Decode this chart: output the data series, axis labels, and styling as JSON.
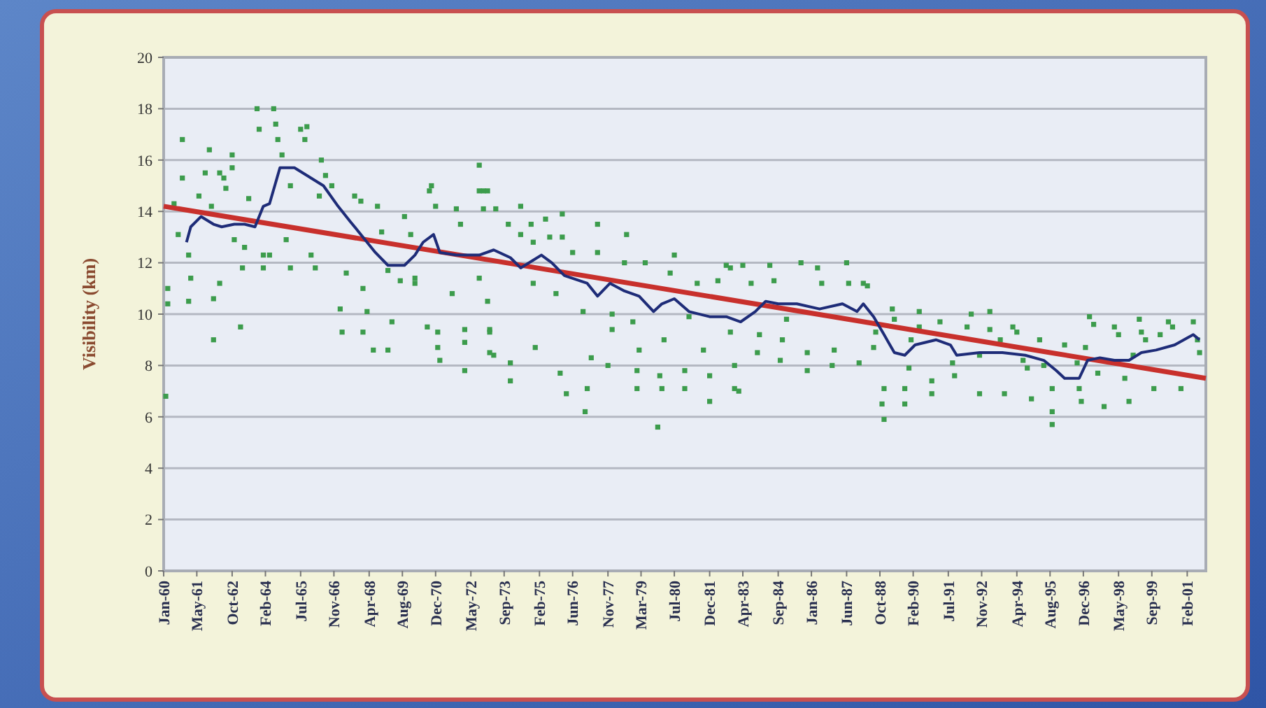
{
  "chart_data": {
    "type": "scatter",
    "ylabel": "Visibility (km)",
    "xlim": [
      "1960-01",
      "2001-11"
    ],
    "xticks": [
      {
        "value": "1960-01",
        "label": "Jan-60"
      },
      {
        "value": "1961-05",
        "label": "May-61"
      },
      {
        "value": "1962-10",
        "label": "Oct-62"
      },
      {
        "value": "1964-02",
        "label": "Feb-64"
      },
      {
        "value": "1965-07",
        "label": "Jul-65"
      },
      {
        "value": "1966-11",
        "label": "Nov-66"
      },
      {
        "value": "1968-04",
        "label": "Apr-68"
      },
      {
        "value": "1969-08",
        "label": "Aug-69"
      },
      {
        "value": "1970-12",
        "label": "Dec-70"
      },
      {
        "value": "1972-05",
        "label": "May-72"
      },
      {
        "value": "1973-09",
        "label": "Sep-73"
      },
      {
        "value": "1975-02",
        "label": "Feb-75"
      },
      {
        "value": "1976-06",
        "label": "Jun-76"
      },
      {
        "value": "1977-11",
        "label": "Nov-77"
      },
      {
        "value": "1979-03",
        "label": "Mar-79"
      },
      {
        "value": "1980-07",
        "label": "Jul-80"
      },
      {
        "value": "1981-12",
        "label": "Dec-81"
      },
      {
        "value": "1983-04",
        "label": "Apr-83"
      },
      {
        "value": "1984-09",
        "label": "Sep-84"
      },
      {
        "value": "1986-01",
        "label": "Jan-86"
      },
      {
        "value": "1987-06",
        "label": "Jun-87"
      },
      {
        "value": "1988-10",
        "label": "Oct-88"
      },
      {
        "value": "1990-02",
        "label": "Feb-90"
      },
      {
        "value": "1991-07",
        "label": "Jul-91"
      },
      {
        "value": "1992-11",
        "label": "Nov-92"
      },
      {
        "value": "1994-04",
        "label": "Apr-94"
      },
      {
        "value": "1995-08",
        "label": "Aug-95"
      },
      {
        "value": "1996-12",
        "label": "Dec-96"
      },
      {
        "value": "1998-05",
        "label": "May-98"
      },
      {
        "value": "1999-09",
        "label": "Sep-99"
      },
      {
        "value": "2001-02",
        "label": "Feb-01"
      }
    ],
    "ylim": [
      0,
      20
    ],
    "yticks": [
      0,
      2,
      4,
      6,
      8,
      10,
      12,
      14,
      16,
      18,
      20
    ],
    "grid": "y",
    "series": [
      {
        "marker": "square",
        "color": "#3c9c4c",
        "x": [
          "1960-03",
          "1960-03",
          "1960-02",
          "1960-06",
          "1960-08",
          "1960-10",
          "1960-10",
          "1961-01",
          "1961-02",
          "1961-01",
          "1961-06",
          "1961-09",
          "1961-11",
          "1961-12",
          "1962-01",
          "1962-01",
          "1962-04",
          "1962-04",
          "1962-06",
          "1962-07",
          "1962-10",
          "1962-10",
          "1962-11",
          "1963-02",
          "1963-03",
          "1963-04",
          "1963-06",
          "1963-10",
          "1963-11",
          "1964-01",
          "1964-01",
          "1964-04",
          "1964-06",
          "1964-07",
          "1964-08",
          "1964-10",
          "1964-12",
          "1965-02",
          "1965-02",
          "1965-07",
          "1965-09",
          "1965-10",
          "1965-12",
          "1966-02",
          "1966-04",
          "1966-05",
          "1966-07",
          "1966-10",
          "1967-02",
          "1967-03",
          "1967-05",
          "1967-09",
          "1967-12",
          "1968-01",
          "1968-01",
          "1968-03",
          "1968-06",
          "1968-08",
          "1968-10",
          "1969-01",
          "1969-01",
          "1969-03",
          "1969-07",
          "1969-09",
          "1969-12",
          "1970-02",
          "1970-02",
          "1970-08",
          "1970-09",
          "1970-10",
          "1970-12",
          "1971-01",
          "1971-01",
          "1971-02",
          "1971-08",
          "1971-10",
          "1971-12",
          "1972-02",
          "1972-02",
          "1972-02",
          "1972-09",
          "1972-09",
          "1972-09",
          "1972-11",
          "1973-01",
          "1973-02",
          "1973-04",
          "1973-01",
          "1972-11",
          "1973-05",
          "1973-11",
          "1974-05",
          "1974-05",
          "1974-10",
          "1974-11",
          "1975-05",
          "1975-07",
          "1976-01",
          "1976-01",
          "1976-06",
          "1977-06",
          "1977-06",
          "1973-02",
          "1973-02",
          "1973-12",
          "1973-12",
          "1974-12",
          "1974-11",
          "1975-10",
          "1975-12",
          "1976-03",
          "1976-11",
          "1977-01",
          "1976-12",
          "1977-03",
          "1977-11",
          "1978-01",
          "1978-01",
          "1978-08",
          "1978-07",
          "1978-11",
          "1979-01",
          "1979-01",
          "1979-02",
          "1979-05",
          "1979-12",
          "1979-11",
          "1980-01",
          "1980-02",
          "1980-05",
          "1980-07",
          "1980-12",
          "1980-12",
          "1981-02",
          "1981-06",
          "1981-09",
          "1981-12",
          "1981-12",
          "1982-04",
          "1982-08",
          "1982-10",
          "1982-10",
          "1982-12",
          "1982-12",
          "1983-02",
          "1983-04",
          "1983-08",
          "1983-11",
          "1983-12",
          "1984-05",
          "1984-07",
          "1984-10",
          "1984-11",
          "1985-01",
          "1985-08",
          "1985-11",
          "1985-11",
          "1986-04",
          "1986-06",
          "1986-11",
          "1986-12",
          "1987-06",
          "1987-07",
          "1987-12",
          "1988-02",
          "1988-04",
          "1988-07",
          "1988-08",
          "1988-12",
          "1988-11",
          "1988-12",
          "1989-04",
          "1989-05",
          "1989-10",
          "1989-10",
          "1989-12",
          "1990-01",
          "1990-05",
          "1990-05",
          "1990-11",
          "1990-11",
          "1991-03",
          "1991-09",
          "1991-10",
          "1992-04",
          "1992-06",
          "1992-10",
          "1992-10",
          "1993-03",
          "1993-03",
          "1993-08",
          "1993-10",
          "1994-02",
          "1994-04",
          "1994-07",
          "1994-09",
          "1994-11",
          "1995-03",
          "1995-05",
          "1995-09",
          "1995-09",
          "1995-09",
          "1996-03",
          "1996-09",
          "1996-10",
          "1996-11",
          "1997-01",
          "1997-03",
          "1997-05",
          "1997-07",
          "1997-10",
          "1998-03",
          "1998-05",
          "1998-08",
          "1998-10",
          "1998-12",
          "1999-03",
          "1999-04",
          "1999-06",
          "1999-10",
          "2000-01",
          "2000-05",
          "2000-07",
          "2000-11",
          "2001-05",
          "2001-07",
          "2001-08"
        ],
        "values": [
          11.0,
          10.4,
          6.8,
          14.3,
          13.1,
          16.8,
          15.3,
          12.3,
          11.4,
          10.5,
          14.6,
          15.5,
          16.4,
          14.2,
          10.6,
          9.0,
          11.2,
          15.5,
          15.3,
          14.9,
          16.2,
          15.7,
          12.9,
          9.5,
          11.8,
          12.6,
          14.5,
          18.0,
          17.2,
          12.3,
          11.8,
          12.3,
          18.0,
          17.4,
          16.8,
          16.2,
          12.9,
          11.8,
          15.0,
          17.2,
          16.8,
          17.3,
          12.3,
          11.8,
          14.6,
          16.0,
          15.4,
          15.0,
          10.2,
          9.3,
          11.6,
          14.6,
          14.4,
          11.0,
          9.3,
          10.1,
          8.6,
          14.2,
          13.2,
          11.7,
          8.6,
          9.7,
          11.3,
          13.8,
          13.1,
          11.4,
          11.2,
          9.5,
          14.8,
          15.0,
          14.2,
          9.3,
          8.7,
          8.2,
          10.8,
          14.1,
          13.5,
          9.4,
          8.9,
          7.8,
          11.4,
          15.8,
          14.8,
          14.1,
          10.5,
          9.3,
          8.4,
          14.8,
          14.8,
          14.1,
          13.5,
          13.1,
          14.2,
          13.5,
          12.8,
          13.7,
          13.0,
          13.9,
          13.0,
          12.4,
          13.5,
          12.4,
          8.5,
          9.4,
          8.1,
          7.4,
          8.7,
          11.2,
          10.8,
          7.7,
          6.9,
          10.1,
          7.1,
          6.2,
          8.3,
          8.0,
          10.0,
          9.4,
          13.1,
          12.0,
          9.7,
          7.8,
          7.1,
          8.6,
          12.0,
          7.6,
          5.6,
          7.1,
          9.0,
          11.6,
          12.3,
          7.8,
          7.1,
          9.9,
          11.2,
          8.6,
          7.6,
          6.6,
          11.3,
          11.9,
          11.8,
          9.3,
          8.0,
          7.1,
          7.0,
          11.9,
          11.2,
          8.5,
          9.2,
          11.9,
          11.3,
          8.2,
          9.0,
          9.8,
          12.0,
          8.5,
          7.8,
          11.8,
          11.2,
          8.0,
          8.6,
          12.0,
          11.2,
          8.1,
          11.2,
          11.1,
          8.7,
          9.3,
          7.1,
          6.5,
          5.9,
          10.2,
          9.8,
          7.1,
          6.5,
          7.9,
          9.0,
          10.1,
          9.5,
          7.4,
          6.9,
          9.7,
          8.1,
          7.6,
          9.5,
          10.0,
          8.4,
          6.9,
          10.1,
          9.4,
          9.0,
          6.9,
          9.5,
          9.3,
          8.2,
          7.9,
          6.7,
          9.0,
          8.0,
          7.1,
          6.2,
          5.7,
          8.8,
          8.1,
          7.1,
          6.6,
          8.7,
          9.9,
          9.6,
          7.7,
          6.4,
          9.5,
          9.2,
          7.5,
          6.6,
          8.4,
          9.8,
          9.3,
          9.0,
          7.1,
          9.2,
          9.7,
          9.5,
          7.1,
          9.7,
          9.0,
          8.5
        ]
      },
      {
        "type": "line",
        "color": "#c8302c",
        "x": [
          "1960-01",
          "2001-11"
        ],
        "values": [
          14.2,
          7.5
        ]
      },
      {
        "type": "line",
        "color": "#1e2c78",
        "x": [
          "1960-12",
          "1961-02",
          "1961-07",
          "1962-01",
          "1962-05",
          "1962-11",
          "1963-04",
          "1963-09",
          "1964-01",
          "1964-04",
          "1964-09",
          "1965-04",
          "1965-12",
          "1966-06",
          "1967-01",
          "1967-07",
          "1968-01",
          "1968-07",
          "1969-01",
          "1969-09",
          "1970-02",
          "1970-06",
          "1970-11",
          "1971-02",
          "1971-10",
          "1972-09",
          "1973-04",
          "1973-12",
          "1974-05",
          "1975-03",
          "1975-08",
          "1976-02",
          "1977-01",
          "1977-06",
          "1977-12",
          "1978-07",
          "1979-02",
          "1979-09",
          "1980-01",
          "1980-07",
          "1981-02",
          "1981-12",
          "1982-08",
          "1983-03",
          "1983-10",
          "1984-03",
          "1984-09",
          "1985-06",
          "1986-05",
          "1987-04",
          "1987-11",
          "1988-02",
          "1988-07",
          "1988-12",
          "1989-05",
          "1989-10",
          "1990-03",
          "1991-01",
          "1991-08",
          "1991-11",
          "1992-10",
          "1993-09",
          "1994-08",
          "1995-05",
          "1995-11",
          "1996-03",
          "1996-10",
          "1997-02",
          "1997-08",
          "1998-03",
          "1998-10",
          "1999-04",
          "1999-11",
          "2000-08",
          "2001-05",
          "2001-08"
        ],
        "values": [
          12.8,
          13.4,
          13.8,
          13.5,
          13.4,
          13.5,
          13.5,
          13.4,
          14.2,
          14.3,
          15.7,
          15.7,
          15.3,
          15.0,
          14.2,
          13.6,
          13.0,
          12.4,
          11.9,
          11.9,
          12.3,
          12.8,
          13.1,
          12.4,
          12.3,
          12.3,
          12.5,
          12.2,
          11.8,
          12.3,
          12.0,
          11.5,
          11.2,
          10.7,
          11.2,
          10.9,
          10.7,
          10.1,
          10.4,
          10.6,
          10.1,
          9.9,
          9.9,
          9.7,
          10.1,
          10.5,
          10.4,
          10.4,
          10.2,
          10.4,
          10.1,
          10.4,
          9.9,
          9.2,
          8.5,
          8.4,
          8.8,
          9.0,
          8.8,
          8.4,
          8.5,
          8.5,
          8.4,
          8.2,
          7.8,
          7.5,
          7.5,
          8.2,
          8.3,
          8.2,
          8.2,
          8.5,
          8.6,
          8.8,
          9.2,
          9.0
        ]
      }
    ]
  }
}
